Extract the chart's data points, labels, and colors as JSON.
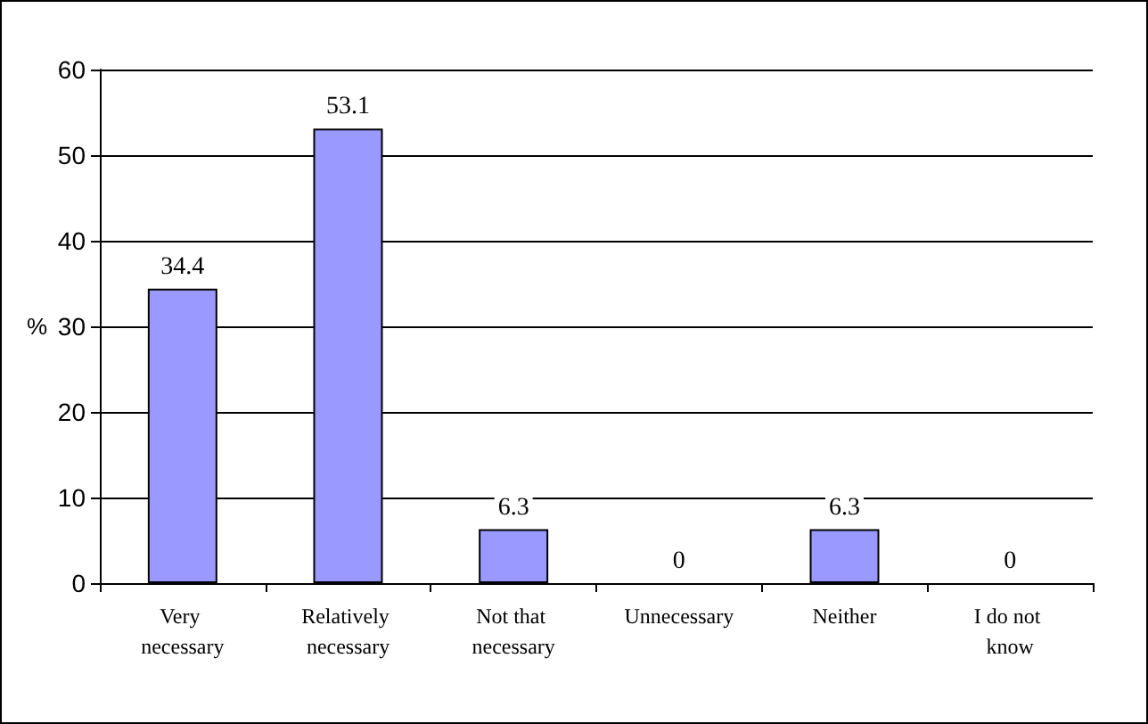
{
  "chart_data": {
    "type": "bar",
    "ylabel": "%",
    "categories": [
      "Very necessary",
      "Relatively necessary",
      "Not that necessary",
      "Unnecessary",
      "Neither",
      "I do not know"
    ],
    "values": [
      34.4,
      53.1,
      6.3,
      0,
      6.3,
      0
    ],
    "color": "#9999ff",
    "ylim": [
      0,
      60
    ],
    "yticks": [
      0,
      10,
      20,
      30,
      40,
      50,
      60
    ],
    "grid": "y",
    "data_labels": true
  }
}
